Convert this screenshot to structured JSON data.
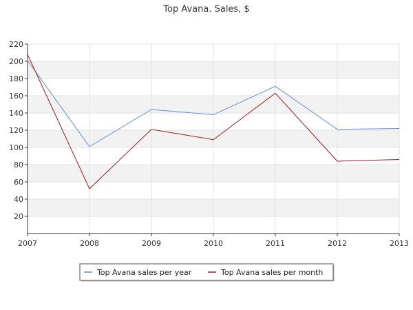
{
  "chart_data": {
    "type": "line",
    "title": "Top Avana. Sales, $",
    "xlabel": "",
    "ylabel": "",
    "categories": [
      "2007",
      "2008",
      "2009",
      "2010",
      "2011",
      "2012",
      "2013"
    ],
    "x": [
      2007,
      2008,
      2009,
      2010,
      2011,
      2012,
      2013
    ],
    "xlim": [
      2007,
      2013
    ],
    "ylim": [
      0,
      220
    ],
    "yticks": [
      20,
      40,
      60,
      80,
      100,
      120,
      140,
      160,
      180,
      200,
      220
    ],
    "grid": true,
    "legend_position": "bottom-center",
    "series": [
      {
        "name": "Top Avana sales per year",
        "color": "#5b8fd9",
        "values": [
          201,
          101,
          144,
          138,
          171,
          121,
          122
        ]
      },
      {
        "name": "Top Avana sales per month",
        "color": "#a31818",
        "values": [
          208,
          52,
          121,
          109,
          163,
          84,
          86
        ]
      }
    ]
  }
}
